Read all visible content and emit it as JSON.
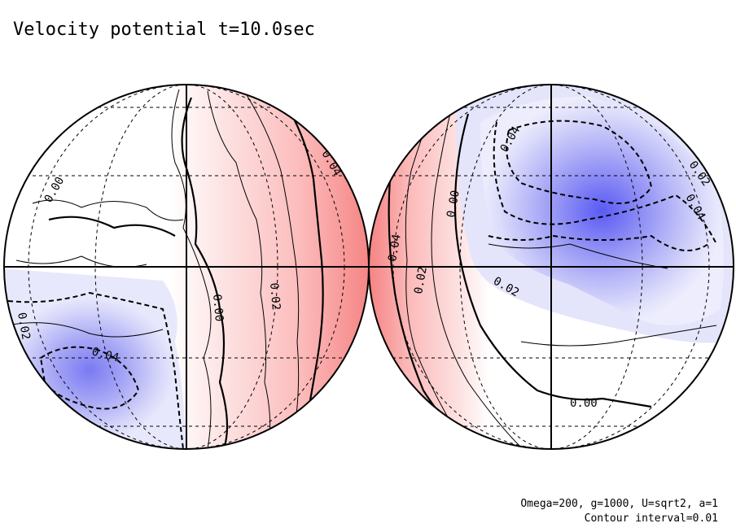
{
  "figure": {
    "title": "Velocity potential t=10.0sec",
    "params_line": "Omega=200, g=1000, U=sqrt2, a=1",
    "contour_line": "Contour interval=0.01"
  },
  "colors": {
    "positive_max": "#f58080",
    "positive_light": "#fde2e2",
    "negative_max": "#5a5af5",
    "negative_light": "#e6e6fb",
    "zero": "#ffffff",
    "contour": "#000000"
  },
  "projection": "orthographic, two hemispheres",
  "hemispheres": [
    {
      "name": "left",
      "contour_labels": [
        {
          "text": "0.04",
          "rotate": 60
        },
        {
          "text": "0.00",
          "rotate": -60
        },
        {
          "text": "0.02",
          "rotate": 85
        },
        {
          "text": "0.00",
          "rotate": 85
        },
        {
          "text": "0.02",
          "rotate": 80
        },
        {
          "text": "0.04",
          "rotate": 15
        }
      ]
    },
    {
      "name": "right",
      "contour_labels": [
        {
          "text": "0.04",
          "rotate": -60
        },
        {
          "text": "0.02",
          "rotate": 55
        },
        {
          "text": "0.04",
          "rotate": 60
        },
        {
          "text": "0.00",
          "rotate": -80
        },
        {
          "text": "0.04",
          "rotate": -80
        },
        {
          "text": "0.02",
          "rotate": -80
        },
        {
          "text": "0.02",
          "rotate": 30
        },
        {
          "text": "0.00",
          "rotate": 0
        }
      ]
    }
  ]
}
